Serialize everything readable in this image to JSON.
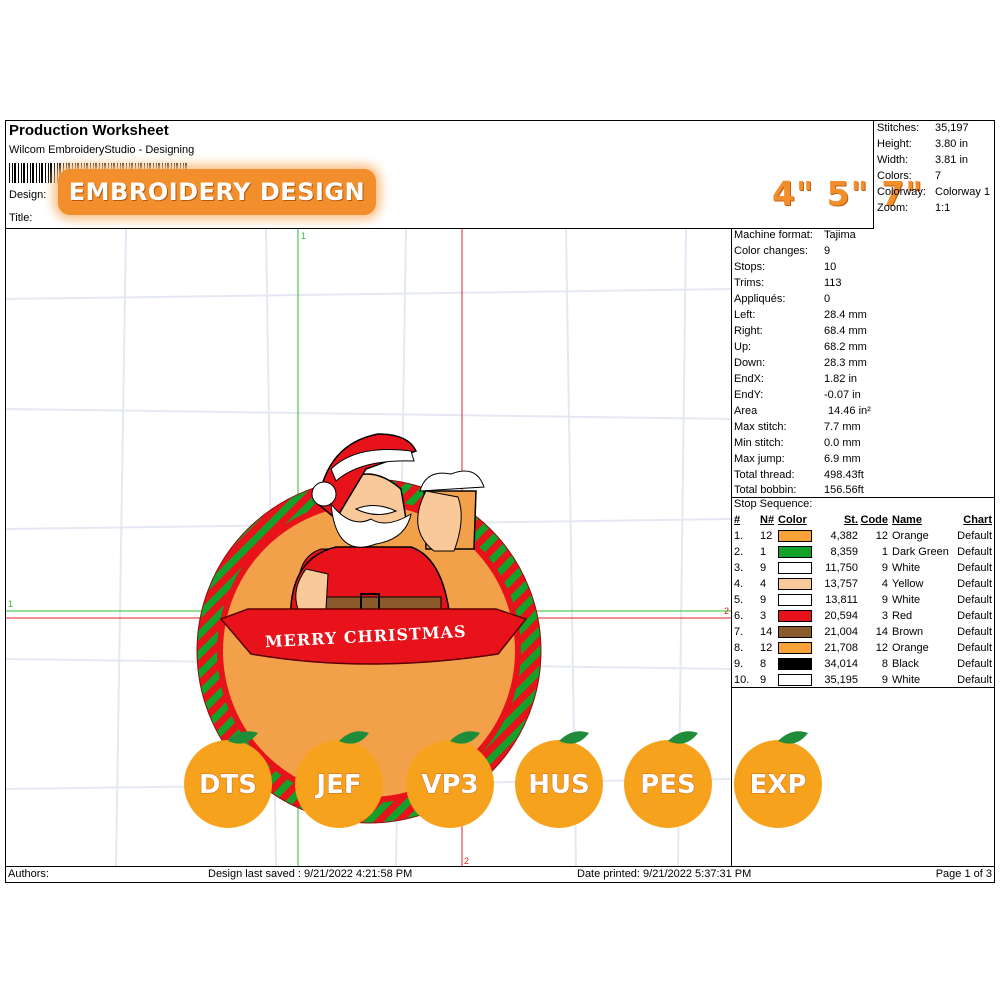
{
  "header": {
    "title": "Production Worksheet",
    "app": "Wilcom EmbroideryStudio - Designing",
    "design_label": "Design:",
    "title_label": "Title:",
    "badge": "EMBROIDERY DESIGN",
    "sizes": "4\" 5\" 7\""
  },
  "stats": [
    {
      "label": "Stitches:",
      "value": "35,197"
    },
    {
      "label": "Height:",
      "value": "3.80 in"
    },
    {
      "label": "Width:",
      "value": "3.81 in"
    },
    {
      "label": "Colors:",
      "value": "7"
    },
    {
      "label": "Colorway:",
      "value": "Colorway 1"
    },
    {
      "label": "Zoom:",
      "value": "1:1"
    }
  ],
  "machine": [
    {
      "label": "Machine format:",
      "value": "Tajima"
    },
    {
      "label": "Color changes:",
      "value": "9"
    },
    {
      "label": "Stops:",
      "value": "10"
    },
    {
      "label": "Trims:",
      "value": "113"
    },
    {
      "label": "Appliqués:",
      "value": "0"
    },
    {
      "label": "Left:",
      "value": "28.4 mm"
    },
    {
      "label": "Right:",
      "value": "68.4 mm"
    },
    {
      "label": "Up:",
      "value": "68.2 mm"
    },
    {
      "label": "Down:",
      "value": "28.3 mm"
    },
    {
      "label": "EndX:",
      "value": "1.82 in"
    },
    {
      "label": "EndY:",
      "value": "-0.07 in"
    },
    {
      "label": "Area",
      "value": "14.46 in²"
    },
    {
      "label": "Max stitch:",
      "value": "7.7 mm"
    },
    {
      "label": "Min stitch:",
      "value": "0.0 mm"
    },
    {
      "label": "Max jump:",
      "value": "6.9 mm"
    },
    {
      "label": "Total thread:",
      "value": "498.43ft"
    },
    {
      "label": "Total bobbin:",
      "value": "156.56ft"
    }
  ],
  "stop_sequence": {
    "title": "Stop Sequence:",
    "columns": [
      "#",
      "N#",
      "Color",
      "St.",
      "Code",
      "Name",
      "Chart"
    ],
    "rows": [
      {
        "num": "1.",
        "n": "12",
        "color": "#f7a23b",
        "st": "4,382",
        "code": "12",
        "name": "Orange",
        "chart": "Default"
      },
      {
        "num": "2.",
        "n": "1",
        "color": "#13a12a",
        "st": "8,359",
        "code": "1",
        "name": "Dark Green",
        "chart": "Default"
      },
      {
        "num": "3.",
        "n": "9",
        "color": "#ffffff",
        "st": "11,750",
        "code": "9",
        "name": "White",
        "chart": "Default"
      },
      {
        "num": "4.",
        "n": "4",
        "color": "#f9c99a",
        "st": "13,757",
        "code": "4",
        "name": "Yellow",
        "chart": "Default"
      },
      {
        "num": "5.",
        "n": "9",
        "color": "#ffffff",
        "st": "13,811",
        "code": "9",
        "name": "White",
        "chart": "Default"
      },
      {
        "num": "6.",
        "n": "3",
        "color": "#e8121a",
        "st": "20,594",
        "code": "3",
        "name": "Red",
        "chart": "Default"
      },
      {
        "num": "7.",
        "n": "14",
        "color": "#8b5a2b",
        "st": "21,004",
        "code": "14",
        "name": "Brown",
        "chart": "Default"
      },
      {
        "num": "8.",
        "n": "12",
        "color": "#f7a23b",
        "st": "21,708",
        "code": "12",
        "name": "Orange",
        "chart": "Default"
      },
      {
        "num": "9.",
        "n": "8",
        "color": "#000000",
        "st": "34,014",
        "code": "8",
        "name": "Black",
        "chart": "Default"
      },
      {
        "num": "10.",
        "n": "9",
        "color": "#ffffff",
        "st": "35,195",
        "code": "9",
        "name": "White",
        "chart": "Default"
      }
    ]
  },
  "design_art": {
    "banner_text": "MERRY CHRISTMAS",
    "guide_labels": [
      "1",
      "1",
      "2",
      "2"
    ]
  },
  "formats": [
    "DTS",
    "JEF",
    "VP3",
    "HUS",
    "PES",
    "EXP"
  ],
  "footer": {
    "authors": "Authors:",
    "last_saved": "Design last saved : 9/21/2022 4:21:58 PM",
    "printed": "Date printed: 9/21/2022 5:37:31 PM",
    "page": "Page 1 of 3"
  },
  "colors": {
    "accent_orange": "#f28e2b",
    "guide_green": "#2bbf2b",
    "guide_red": "#e02020"
  }
}
